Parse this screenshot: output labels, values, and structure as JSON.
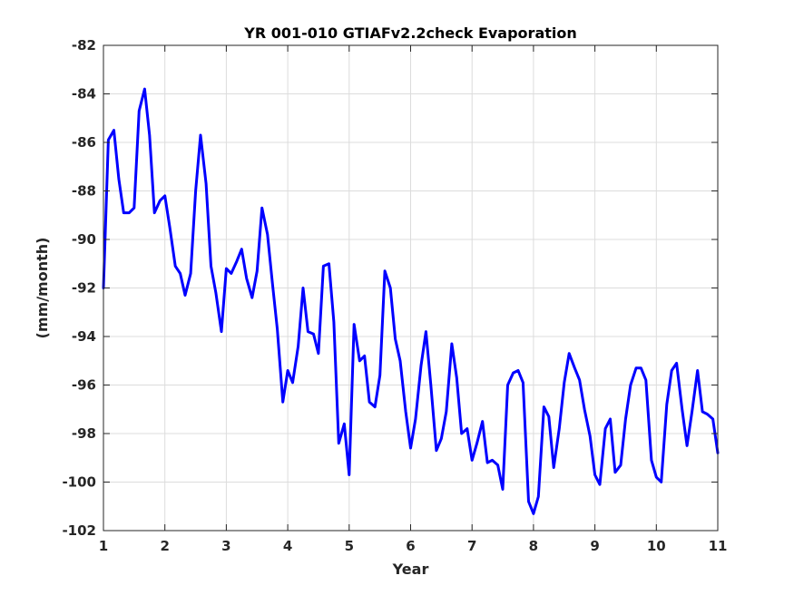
{
  "chart_data": {
    "type": "line",
    "title": "YR 001-010 GTIAFv2.2check Evaporation",
    "xlabel": "Year",
    "ylabel": "(mm/month)",
    "xlim": [
      1,
      11
    ],
    "ylim": [
      -102,
      -82
    ],
    "xticks": [
      1,
      2,
      3,
      4,
      5,
      6,
      7,
      8,
      9,
      10,
      11
    ],
    "yticks": [
      -102,
      -100,
      -98,
      -96,
      -94,
      -92,
      -90,
      -88,
      -86,
      -84,
      -82
    ],
    "grid": true,
    "line_color": "#0000ff",
    "series": [
      {
        "x": [
          1.0,
          1.08,
          1.17,
          1.25,
          1.33,
          1.42,
          1.5,
          1.58,
          1.67,
          1.75,
          1.83,
          1.92,
          2.0,
          2.08,
          2.17,
          2.25,
          2.33,
          2.42,
          2.5,
          2.58,
          2.67,
          2.75,
          2.83,
          2.92,
          3.0,
          3.08,
          3.17,
          3.25,
          3.33,
          3.42,
          3.5,
          3.58,
          3.67,
          3.75,
          3.83,
          3.92,
          4.0,
          4.08,
          4.17,
          4.25,
          4.33,
          4.42,
          4.5,
          4.58,
          4.67,
          4.75,
          4.83,
          4.92,
          5.0,
          5.08,
          5.17,
          5.25,
          5.33,
          5.42,
          5.5,
          5.58,
          5.67,
          5.75,
          5.83,
          5.92,
          6.0,
          6.08,
          6.17,
          6.25,
          6.33,
          6.42,
          6.5,
          6.58,
          6.67,
          6.75,
          6.83,
          6.92,
          7.0,
          7.08,
          7.17,
          7.25,
          7.33,
          7.42,
          7.5,
          7.58,
          7.67,
          7.75,
          7.83,
          7.92,
          8.0,
          8.08,
          8.17,
          8.25,
          8.33,
          8.42,
          8.5,
          8.58,
          8.67,
          8.75,
          8.83,
          8.92,
          9.0,
          9.08,
          9.17,
          9.25,
          9.33,
          9.42,
          9.5,
          9.58,
          9.67,
          9.75,
          9.83,
          9.92,
          10.0,
          10.08,
          10.17,
          10.25,
          10.33,
          10.42,
          10.5,
          10.58,
          10.67,
          10.75,
          10.83,
          10.92,
          11.0
        ],
        "y": [
          -92.0,
          -85.9,
          -85.5,
          -87.5,
          -88.9,
          -88.9,
          -88.7,
          -84.7,
          -83.8,
          -85.7,
          -88.9,
          -88.4,
          -88.2,
          -89.5,
          -91.1,
          -91.4,
          -92.3,
          -91.4,
          -88.0,
          -85.7,
          -87.7,
          -91.1,
          -92.2,
          -93.8,
          -91.2,
          -91.4,
          -90.9,
          -90.4,
          -91.6,
          -92.4,
          -91.3,
          -88.7,
          -89.8,
          -91.8,
          -93.7,
          -96.7,
          -95.4,
          -95.9,
          -94.4,
          -92.0,
          -93.8,
          -93.9,
          -94.7,
          -91.1,
          -91.0,
          -93.4,
          -98.4,
          -97.6,
          -99.7,
          -93.5,
          -95.0,
          -94.8,
          -96.7,
          -96.9,
          -95.6,
          -91.3,
          -92.0,
          -94.1,
          -95.0,
          -97.1,
          -98.6,
          -97.4,
          -95.2,
          -93.8,
          -96.0,
          -98.7,
          -98.2,
          -97.1,
          -94.3,
          -95.7,
          -98.0,
          -97.8,
          -99.1,
          -98.4,
          -97.5,
          -99.2,
          -99.1,
          -99.3,
          -100.3,
          -96.0,
          -95.5,
          -95.4,
          -95.9,
          -100.8,
          -101.3,
          -100.6,
          -96.9,
          -97.3,
          -99.4,
          -97.8,
          -95.9,
          -94.7,
          -95.3,
          -95.8,
          -97.0,
          -98.1,
          -99.7,
          -100.1,
          -97.8,
          -97.4,
          -99.6,
          -99.3,
          -97.4,
          -96.0,
          -95.3,
          -95.3,
          -95.8,
          -99.1,
          -99.8,
          -100.0,
          -96.8,
          -95.4,
          -95.1,
          -97.0,
          -98.5,
          -97.1,
          -95.4,
          -97.1,
          -97.2,
          -97.4,
          -98.8
        ]
      }
    ]
  }
}
